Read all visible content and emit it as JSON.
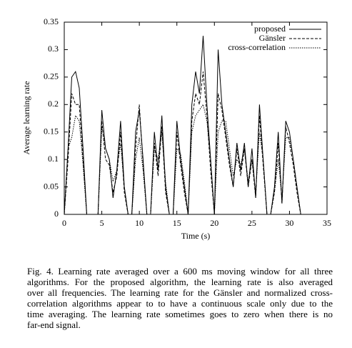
{
  "chart_data": {
    "type": "line",
    "xlabel": "Time (s)",
    "ylabel": "Average learning rate",
    "xlim": [
      0,
      35
    ],
    "xticks": [
      0,
      5,
      10,
      15,
      20,
      25,
      30,
      35
    ],
    "ylim": [
      0,
      0.35
    ],
    "yticks": [
      0,
      0.05,
      0.1,
      0.15,
      0.2,
      0.25,
      0.3,
      0.35
    ],
    "legend": "upper right",
    "x": [
      0,
      0.5,
      1,
      1.5,
      2,
      2.5,
      3,
      3.5,
      4,
      4.5,
      5,
      5.5,
      6,
      6.5,
      7,
      7.5,
      8,
      8.5,
      9,
      9.5,
      10,
      10.5,
      11,
      11.5,
      12,
      12.5,
      13,
      13.5,
      14,
      14.5,
      15,
      15.5,
      16,
      16.5,
      17,
      17.5,
      18,
      18.5,
      19,
      19.5,
      20,
      20.5,
      21,
      21.5,
      22,
      22.5,
      23,
      23.5,
      24,
      24.5,
      25,
      25.5,
      26,
      26.5,
      27,
      27.5,
      28,
      28.5,
      29,
      29.5,
      30,
      30.5,
      31,
      31.5,
      32
    ],
    "series": [
      {
        "name": "proposed",
        "color": "#000000",
        "dash": "solid",
        "values": [
          0,
          0.12,
          0.25,
          0.26,
          0.23,
          0.12,
          0,
          0,
          0,
          0,
          0.19,
          0.12,
          0.1,
          0.03,
          0.08,
          0.17,
          0.05,
          0,
          0,
          0.15,
          0.19,
          0.1,
          0,
          0,
          0.15,
          0.08,
          0.18,
          0.05,
          0,
          0,
          0.17,
          0.1,
          0.05,
          0,
          0.2,
          0.26,
          0.22,
          0.325,
          0.2,
          0.1,
          0,
          0.3,
          0.2,
          0.15,
          0.1,
          0.05,
          0.13,
          0.08,
          0.13,
          0.05,
          0.12,
          0.03,
          0.2,
          0.1,
          0,
          0,
          0.05,
          0.15,
          0.02,
          0.17,
          0.15,
          0.1,
          0.05,
          0,
          0
        ]
      },
      {
        "name": "Gänsler",
        "color": "#000000",
        "dash": "dashed",
        "values": [
          0,
          0.1,
          0.22,
          0.2,
          0.2,
          0.1,
          0,
          0,
          0,
          0,
          0.17,
          0.1,
          0.09,
          0.04,
          0.07,
          0.15,
          0.04,
          0,
          0,
          0.12,
          0.2,
          0.09,
          0,
          0,
          0.13,
          0.07,
          0.16,
          0.04,
          0,
          0,
          0.15,
          0.09,
          0.04,
          0,
          0.17,
          0.22,
          0.2,
          0.26,
          0.18,
          0.08,
          0,
          0.22,
          0.19,
          0.14,
          0.09,
          0.05,
          0.12,
          0.07,
          0.12,
          0.05,
          0.1,
          0.03,
          0.18,
          0.09,
          0,
          0,
          0.04,
          0.13,
          0.02,
          0.16,
          0.13,
          0.09,
          0.04,
          0,
          0
        ]
      },
      {
        "name": "cross-correlation",
        "color": "#000000",
        "dash": "dotted",
        "values": [
          0,
          0.12,
          0.14,
          0.18,
          0.17,
          0.09,
          0,
          0,
          0,
          0,
          0.16,
          0.12,
          0.1,
          0.06,
          0.08,
          0.13,
          0.05,
          0,
          0,
          0.1,
          0.14,
          0.08,
          0,
          0,
          0.12,
          0.1,
          0.15,
          0.06,
          0,
          0,
          0.12,
          0.11,
          0.06,
          0,
          0.15,
          0.18,
          0.19,
          0.2,
          0.17,
          0.1,
          0,
          0.15,
          0.17,
          0.17,
          0.12,
          0.07,
          0.1,
          0.09,
          0.12,
          0.06,
          0.1,
          0.04,
          0.15,
          0.1,
          0,
          0,
          0.04,
          0.1,
          0.03,
          0.14,
          0.14,
          0.1,
          0.05,
          0,
          0
        ]
      }
    ]
  },
  "caption": {
    "lines": [
      "Fig. 4.   Learning rate averaged over a 600 ms moving window for all three",
      "algorithms.  For the proposed algorithm, the learning rate is also averaged",
      "over all frequencies. The learning rate for the Gänsler and normalized cross-",
      "correlation algorithms appear to to have a continuous scale only due to the",
      "time averaging. The learning rate sometimes goes to zero when there is no",
      "far-end signal."
    ]
  }
}
